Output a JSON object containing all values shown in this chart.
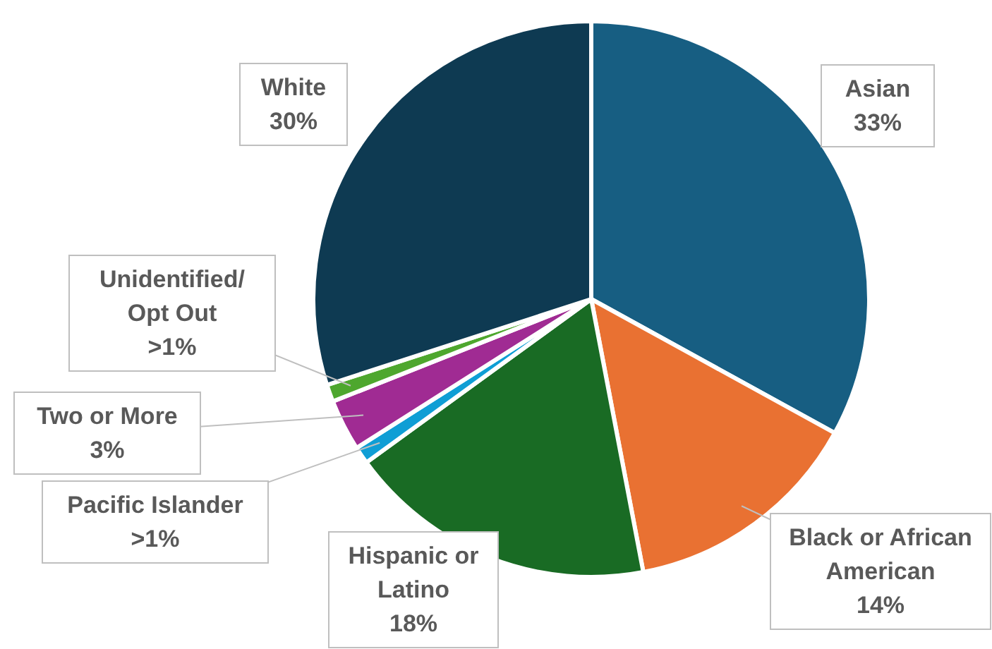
{
  "chart_data": {
    "type": "pie",
    "categories": [
      "Asian",
      "Black or African American",
      "Hispanic or Latino",
      "Pacific Islander",
      "Two or More",
      "Unidentified/ Opt Out",
      "White"
    ],
    "values": [
      33,
      14,
      18,
      1,
      3,
      1,
      30
    ],
    "value_labels": [
      "33%",
      "14%",
      "18%",
      ">1%",
      "3%",
      ">1%",
      "30%"
    ],
    "colors": [
      "#175e82",
      "#e97132",
      "#196b24",
      "#0f9ed5",
      "#a02b93",
      "#4ea72e",
      "#0e3a52"
    ]
  }
}
